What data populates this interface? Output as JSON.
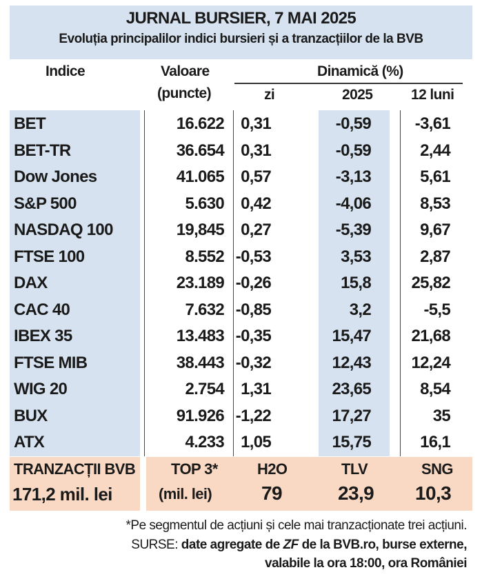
{
  "header": {
    "title": "JURNAL BURSIER, 7 MAI 2025",
    "subtitle": "Evoluția principalilor indici bursieri și a tranzacțiilor de la BVB"
  },
  "columns": {
    "index": "Indice",
    "value_line1": "Valoare",
    "value_line2": "(puncte)",
    "dynamics": "Dinamică (%)",
    "day": "zi",
    "ytd": "2025",
    "months12": "12 luni"
  },
  "rows": [
    {
      "name": "BET",
      "value": "16.622",
      "day": "0,31",
      "ytd": "-0,59",
      "m12": "-3,61"
    },
    {
      "name": "BET-TR",
      "value": "36.654",
      "day": "0,31",
      "ytd": "-0,59",
      "m12": "2,44"
    },
    {
      "name": "Dow Jones",
      "value": "41.065",
      "day": "0,57",
      "ytd": "-3,13",
      "m12": "5,61"
    },
    {
      "name": "S&P 500",
      "value": "5.630",
      "day": "0,42",
      "ytd": "-4,06",
      "m12": "8,53"
    },
    {
      "name": "NASDAQ 100",
      "value": "19,845",
      "day": "0,27",
      "ytd": "-5,39",
      "m12": "9,67"
    },
    {
      "name": "FTSE 100",
      "value": "8.552",
      "day": "-0,53",
      "ytd": "3,53",
      "m12": "2,87"
    },
    {
      "name": "DAX",
      "value": "23.189",
      "day": "-0,26",
      "ytd": "15,8",
      "m12": "25,82"
    },
    {
      "name": "CAC 40",
      "value": "7.632",
      "day": "-0,85",
      "ytd": "3,2",
      "m12": "-5,5"
    },
    {
      "name": "IBEX 35",
      "value": "13.483",
      "day": "-0,35",
      "ytd": "15,47",
      "m12": "21,68"
    },
    {
      "name": "FTSE MIB",
      "value": "38.443",
      "day": "-0,32",
      "ytd": "12,43",
      "m12": "12,24"
    },
    {
      "name": "WIG 20",
      "value": "2.754",
      "day": "1,31",
      "ytd": "23,65",
      "m12": "8,54"
    },
    {
      "name": "BUX",
      "value": "91.926",
      "day": "-1,22",
      "ytd": "17,27",
      "m12": "35"
    },
    {
      "name": "ATX",
      "value": "4.233",
      "day": "1,05",
      "ytd": "15,75",
      "m12": "16,1"
    }
  ],
  "transactions": {
    "label": "TRANZACȚII BVB",
    "amount": "171,2 mil. lei",
    "top_label": "TOP 3*",
    "top_unit": "(mil. lei)",
    "top": [
      {
        "symbol": "H2O",
        "value": "79"
      },
      {
        "symbol": "TLV",
        "value": "23,9"
      },
      {
        "symbol": "SNG",
        "value": "10,3"
      }
    ]
  },
  "footnote": {
    "note": "*Pe segmentul de acțiuni și cele mai tranzacționate trei acțiuni.",
    "sources_prefix": "SURSE: ",
    "sources_a": "date agregate de ",
    "sources_zf": "ZF",
    "sources_b": " de la BVB.ro, burse externe,",
    "sources_line2": "valabile la ora 18:00, ora României"
  },
  "colors": {
    "header_bg": "#d6e2ef",
    "column_bg": "#d6e2ef",
    "transactions_bg": "#fad9c4"
  }
}
